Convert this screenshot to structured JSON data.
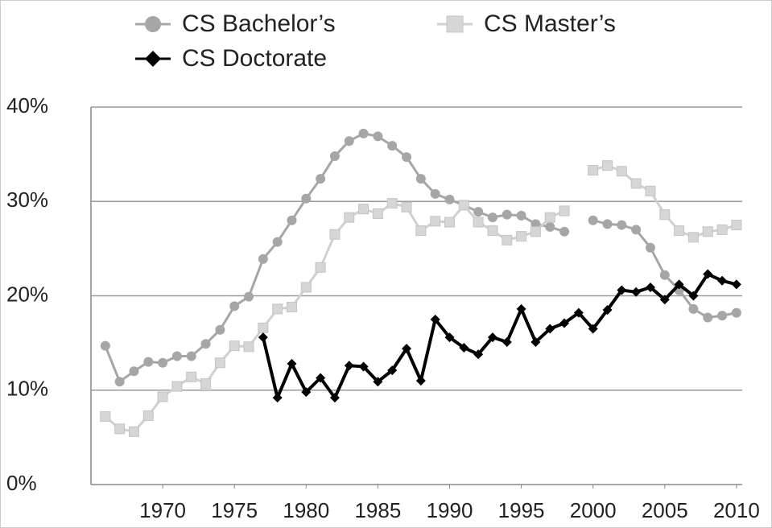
{
  "chart_data": {
    "type": "line",
    "x": [
      1966,
      1967,
      1968,
      1969,
      1970,
      1971,
      1972,
      1973,
      1974,
      1975,
      1976,
      1977,
      1978,
      1979,
      1980,
      1981,
      1982,
      1983,
      1984,
      1985,
      1986,
      1987,
      1988,
      1989,
      1990,
      1991,
      1992,
      1993,
      1994,
      1995,
      1996,
      1997,
      1998,
      1999,
      2000,
      2001,
      2002,
      2003,
      2004,
      2005,
      2006,
      2007,
      2008,
      2009,
      2010
    ],
    "series": [
      {
        "name": "CS Bachelor’s",
        "color": "#a6a6a6",
        "marker": "circle",
        "values": [
          14.7,
          10.9,
          12.0,
          13.0,
          12.9,
          13.6,
          13.6,
          14.9,
          16.4,
          18.9,
          19.9,
          23.9,
          25.7,
          28.0,
          30.3,
          32.4,
          34.8,
          36.4,
          37.2,
          36.9,
          35.9,
          34.7,
          32.4,
          30.8,
          30.2,
          29.6,
          28.9,
          28.3,
          28.6,
          28.5,
          27.6,
          27.3,
          26.8,
          null,
          28.0,
          27.6,
          27.5,
          27.0,
          25.1,
          22.2,
          20.6,
          18.6,
          17.7,
          17.9,
          18.2
        ]
      },
      {
        "name": "CS Master’s",
        "color": "#d6d6d6",
        "marker": "square",
        "values": [
          7.2,
          5.9,
          5.6,
          7.3,
          9.3,
          10.4,
          11.4,
          10.7,
          12.9,
          14.7,
          14.6,
          16.6,
          18.6,
          18.8,
          20.9,
          23.0,
          26.5,
          28.3,
          29.2,
          28.7,
          29.8,
          29.4,
          26.9,
          27.9,
          27.8,
          29.6,
          27.8,
          26.9,
          25.9,
          26.3,
          26.8,
          28.3,
          29.0,
          null,
          33.3,
          33.8,
          33.2,
          31.9,
          31.1,
          28.6,
          26.9,
          26.2,
          26.8,
          27.0,
          27.5
        ]
      },
      {
        "name": "CS Doctorate",
        "color": "#000000",
        "marker": "diamond",
        "values": [
          null,
          null,
          null,
          null,
          null,
          null,
          null,
          null,
          null,
          null,
          null,
          15.6,
          9.2,
          12.8,
          9.8,
          11.3,
          9.2,
          12.6,
          12.5,
          10.9,
          12.1,
          14.4,
          11.0,
          17.5,
          15.6,
          14.5,
          13.8,
          15.6,
          15.1,
          18.6,
          15.1,
          16.5,
          17.1,
          18.2,
          16.5,
          18.5,
          20.6,
          20.4,
          20.9,
          19.6,
          21.2,
          20.0,
          22.3,
          21.6,
          21.2
        ]
      }
    ],
    "xlim": [
      1965,
      2010.4
    ],
    "xticks": [
      1970,
      1975,
      1980,
      1985,
      1990,
      1995,
      2000,
      2005,
      2010
    ],
    "ylim": [
      0,
      40
    ],
    "yticks": [
      {
        "value": 0,
        "label": "0%"
      },
      {
        "value": 10,
        "label": "10%"
      },
      {
        "value": 20,
        "label": "20%"
      },
      {
        "value": 30,
        "label": "30%"
      },
      {
        "value": 40,
        "label": "40%"
      }
    ],
    "grid": true,
    "legend": "top"
  }
}
